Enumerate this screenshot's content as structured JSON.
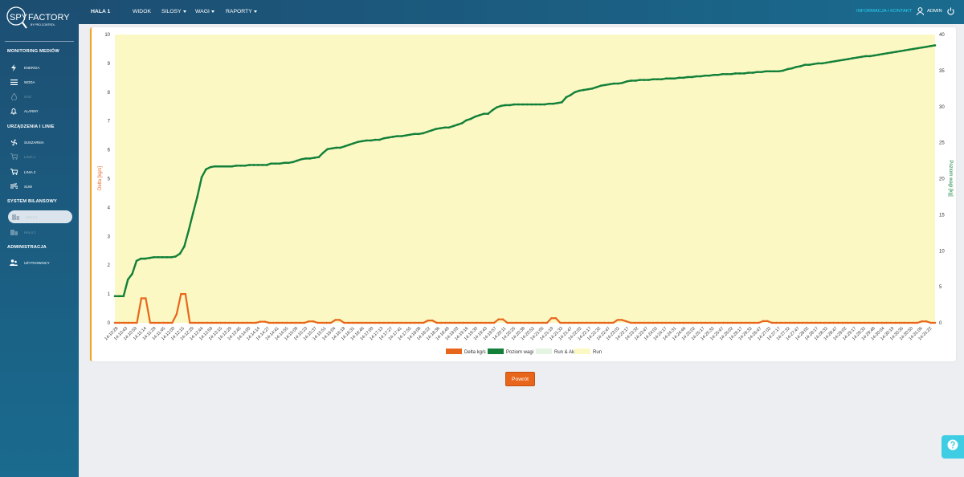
{
  "brand": {
    "line1": "SPY",
    "line2": "FACTORY",
    "tagline": "BY PRO-CONTROL"
  },
  "sidebar": {
    "sections": [
      {
        "title": "MONITORING MEDIÓW",
        "items": [
          {
            "label": "ENERGIA",
            "icon": "bolt-icon",
            "state": "normal"
          },
          {
            "label": "WODA",
            "icon": "water-lines-icon",
            "state": "normal"
          },
          {
            "label": "GAZ",
            "icon": "flame-icon",
            "state": "disabled"
          },
          {
            "label": "ALARMY",
            "icon": "bell-icon",
            "state": "normal"
          }
        ]
      },
      {
        "title": "URZĄDZENIA I LINIE",
        "items": [
          {
            "label": "SUSZARNIA",
            "icon": "fan-icon",
            "state": "normal"
          },
          {
            "label": "LINIA 1",
            "icon": "cart-icon",
            "state": "disabled"
          },
          {
            "label": "LINIA 3",
            "icon": "cart-icon",
            "state": "normal"
          },
          {
            "label": "SUW",
            "icon": "wind-icon",
            "state": "normal"
          }
        ]
      },
      {
        "title": "SYSTEM BILANSOWY",
        "items": [
          {
            "label": "HALA 1",
            "icon": "building-icon",
            "state": "active"
          },
          {
            "label": "HALA 2",
            "icon": "building-icon",
            "state": "disabled"
          }
        ]
      },
      {
        "title": "ADMINISTRACJA",
        "items": [
          {
            "label": "UŻYTKOWNICY",
            "icon": "users-icon",
            "state": "normal"
          }
        ]
      }
    ]
  },
  "topbar": {
    "current": "HALA 1",
    "menu": [
      {
        "label": "WIDOK",
        "dropdown": false
      },
      {
        "label": "SILOSY",
        "dropdown": true
      },
      {
        "label": "WAGI",
        "dropdown": true
      },
      {
        "label": "RAPORTY",
        "dropdown": true
      }
    ],
    "info_link": "INFORMACJA I KONTAKT",
    "user": "ADMIN"
  },
  "chart_data": {
    "type": "line",
    "y_left_label": "Delta [kg/s]",
    "y_right_label": "Poziom wagi [kg]",
    "y_left_lim": [
      0,
      10
    ],
    "y_right_lim": [
      0,
      40
    ],
    "y_left_ticks": [
      "0",
      "1",
      "2",
      "3",
      "4",
      "5",
      "6",
      "7",
      "8",
      "9",
      "10"
    ],
    "y_right_ticks": [
      "0",
      "5",
      "10",
      "15",
      "20",
      "25",
      "30",
      "35",
      "40"
    ],
    "x_ticks": [
      "14:10:28",
      "14:10:43",
      "14:10:59",
      "14:11:14",
      "14:11:29",
      "14:11:45",
      "14:12:00",
      "14:12:15",
      "14:12:29",
      "14:12:44",
      "14:12:59",
      "14:13:15",
      "14:13:29",
      "14:13:45",
      "14:14:00",
      "14:14:14",
      "14:14:27",
      "14:14:41",
      "14:14:55",
      "14:15:09",
      "14:15:23",
      "14:15:37",
      "14:15:51",
      "14:16:04",
      "14:16:18",
      "14:16:31",
      "14:16:46",
      "14:17:00",
      "14:17:13",
      "14:17:27",
      "14:17:41",
      "14:17:55",
      "14:18:08",
      "14:18:22",
      "14:18:36",
      "14:18:49",
      "14:19:03",
      "14:19:16",
      "14:19:30",
      "14:19:43",
      "14:19:57",
      "14:20:11",
      "14:20:25",
      "14:20:38",
      "14:20:52",
      "14:21:05",
      "14:21:19",
      "14:21:33",
      "14:21:47",
      "14:22:02",
      "14:22:17",
      "14:22:32",
      "14:22:47",
      "14:23:02",
      "14:23:17",
      "14:23:32",
      "14:23:47",
      "14:24:02",
      "14:24:17",
      "14:24:31",
      "14:24:46",
      "14:25:02",
      "14:25:17",
      "14:25:32",
      "14:25:47",
      "14:26:02",
      "14:26:17",
      "14:26:32",
      "14:26:47",
      "14:27:02",
      "14:27:17",
      "14:27:32",
      "14:27:47",
      "14:28:02",
      "14:28:17",
      "14:28:32",
      "14:28:47",
      "14:29:02",
      "14:29:17",
      "14:29:32",
      "14:29:48",
      "14:30:04",
      "14:30:19",
      "14:30:35",
      "14:30:50",
      "14:31:06",
      "14:31:22"
    ],
    "series": [
      {
        "name": "Delta kg/s",
        "color": "#e8661b",
        "axis": "left",
        "values": [
          0,
          0,
          0,
          0,
          0,
          0,
          0.85,
          0.85,
          0,
          0,
          0,
          0,
          0,
          0,
          0.3,
          1.0,
          1.0,
          0,
          0,
          0,
          0,
          0,
          0,
          0,
          0,
          0,
          0,
          0,
          0,
          0,
          0,
          0,
          0,
          0.04,
          0.04,
          0,
          0,
          0,
          0,
          0,
          0,
          0,
          0,
          0,
          0.05,
          0.05,
          0,
          0,
          0,
          0,
          0.1,
          0.1,
          0,
          0,
          0,
          0,
          0,
          0,
          0,
          0,
          0,
          0,
          0,
          0,
          0,
          0,
          0,
          0,
          0,
          0,
          0,
          0.08,
          0.08,
          0,
          0,
          0,
          0,
          0,
          0,
          0,
          0,
          0,
          0,
          0,
          0,
          0,
          0,
          0.12,
          0.12,
          0,
          0,
          0,
          0,
          0,
          0,
          0,
          0,
          0,
          0,
          0.16,
          0.16,
          0,
          0,
          0,
          0,
          0,
          0,
          0,
          0,
          0,
          0,
          0,
          0,
          0,
          0.1,
          0.1,
          0.05,
          0,
          0,
          0,
          0,
          0,
          0,
          0,
          0,
          0,
          0,
          0,
          0,
          0,
          0,
          0,
          0,
          0,
          0,
          0,
          0,
          0,
          0,
          0,
          0,
          0,
          0,
          0,
          0,
          0,
          0,
          0.06,
          0.06,
          0,
          0,
          0,
          0,
          0,
          0,
          0,
          0,
          0,
          0,
          0,
          0,
          0,
          0,
          0,
          0,
          0,
          0,
          0,
          0,
          0,
          0,
          0,
          0,
          0,
          0,
          0,
          0,
          0,
          0,
          0,
          0,
          0,
          0,
          0.05,
          0.05,
          0,
          0
        ]
      },
      {
        "name": "Poziom wagi",
        "color": "#128038",
        "axis": "right",
        "values": [
          3.7,
          3.7,
          3.7,
          6.0,
          6.8,
          8.6,
          8.9,
          8.9,
          9.0,
          9.1,
          9.1,
          9.1,
          9.1,
          9.1,
          9.2,
          9.6,
          10.6,
          12.8,
          15.2,
          17.5,
          20.2,
          21.3,
          21.6,
          21.7,
          21.7,
          21.7,
          21.7,
          21.7,
          21.8,
          21.8,
          21.8,
          21.9,
          21.9,
          21.9,
          21.9,
          21.9,
          22.1,
          22.1,
          22.1,
          22.2,
          22.2,
          22.3,
          22.5,
          22.7,
          22.8,
          22.8,
          22.9,
          23.0,
          23.6,
          24.1,
          24.2,
          24.3,
          24.3,
          24.5,
          24.7,
          24.9,
          25.1,
          25.2,
          25.3,
          25.3,
          25.4,
          25.4,
          25.6,
          25.7,
          25.8,
          25.9,
          25.9,
          26.0,
          26.1,
          26.2,
          26.2,
          26.3,
          26.5,
          26.7,
          26.9,
          27.0,
          27.1,
          27.1,
          27.3,
          27.5,
          27.7,
          28.1,
          28.3,
          28.6,
          28.8,
          29.0,
          29.0,
          29.5,
          29.9,
          30.1,
          30.2,
          30.2,
          30.3,
          30.3,
          30.3,
          30.3,
          30.3,
          30.3,
          30.3,
          30.3,
          30.4,
          30.4,
          30.5,
          30.6,
          31.3,
          31.6,
          32.0,
          32.2,
          32.3,
          32.4,
          32.5,
          32.7,
          32.9,
          33.0,
          33.1,
          33.2,
          33.2,
          33.3,
          33.5,
          33.6,
          33.6,
          33.7,
          33.7,
          33.7,
          33.8,
          33.8,
          33.8,
          33.9,
          33.9,
          33.9,
          34.0,
          34.0,
          34.1,
          34.1,
          34.2,
          34.2,
          34.3,
          34.3,
          34.4,
          34.4,
          34.5,
          34.5,
          34.5,
          34.6,
          34.6,
          34.6,
          34.7,
          34.7,
          34.8,
          34.8,
          34.9,
          34.9,
          34.9,
          34.9,
          35.0,
          35.2,
          35.3,
          35.5,
          35.6,
          35.8,
          35.8,
          35.9,
          36.0,
          36.0,
          36.1,
          36.2,
          36.3,
          36.4,
          36.5,
          36.6,
          36.7,
          36.8,
          36.9,
          37.0,
          37.0,
          37.1,
          37.2,
          37.3,
          37.4,
          37.5,
          37.6,
          37.7,
          37.8,
          37.9,
          38.0,
          38.1,
          38.2,
          38.3,
          38.4,
          38.5
        ]
      },
      {
        "name": "Run & Akt",
        "color": "#e6f5e1",
        "axis": "none",
        "values": []
      },
      {
        "name": "Run",
        "color": "#fbf8c4",
        "axis": "none",
        "values": []
      }
    ],
    "background_band": "Run",
    "grid": false,
    "legend_position": "bottom"
  },
  "actions": {
    "back_label": "Powrót"
  },
  "colors": {
    "accent": "#e8661b",
    "sidebar": "#1c4e72",
    "link": "#2ad3f2",
    "help": "#3ecde3"
  }
}
